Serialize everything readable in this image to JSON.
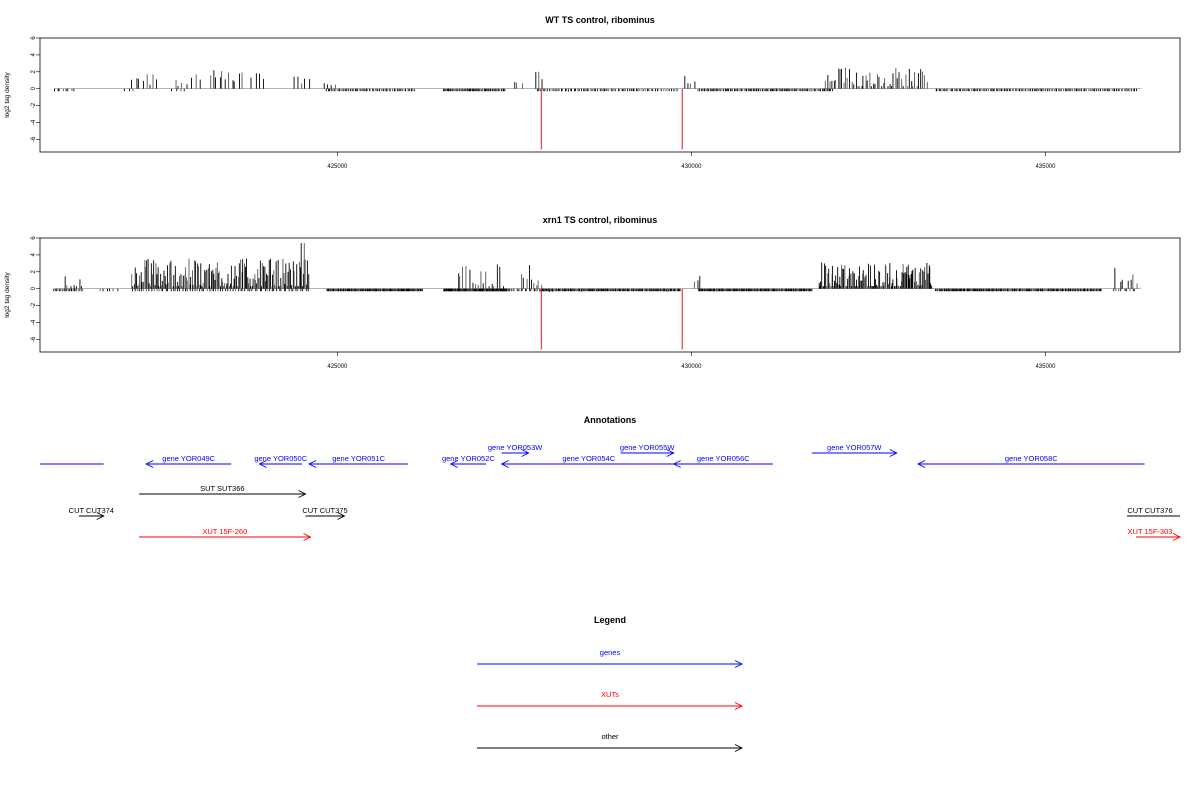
{
  "chart_data": [
    {
      "type": "bar",
      "title": "WT TS control, ribominus",
      "xlabel": "",
      "ylabel": "log2 tag density",
      "xlim": [
        420800,
        436900
      ],
      "ylim": [
        -7.5,
        6
      ],
      "yticks": [
        -6,
        -4,
        -2,
        0,
        2,
        4,
        6
      ],
      "xticks": [
        425000,
        430000,
        435000
      ],
      "grid": false,
      "highlight_color": "#e31a1c",
      "highlighted_x": [
        427880,
        429870
      ],
      "highlighted_values": [
        -7.2,
        -7.2
      ],
      "segments": [
        {
          "from": 421000,
          "to": 421300,
          "step": 40,
          "base": -1.8,
          "amp": 1.4,
          "dir": -1
        },
        {
          "from": 422000,
          "to": 422100,
          "step": 50,
          "base": -1.5,
          "amp": 0.6,
          "dir": -1
        },
        {
          "from": 422100,
          "to": 422450,
          "step": 50,
          "base": 1.3,
          "amp": 1.0,
          "dir": 1
        },
        {
          "from": 422700,
          "to": 423100,
          "step": 60,
          "base": 1.2,
          "amp": 1.2,
          "dir": 1
        },
        {
          "from": 422650,
          "to": 422850,
          "step": 60,
          "base": -1.2,
          "amp": 0.8,
          "dir": -1
        },
        {
          "from": 423200,
          "to": 423650,
          "step": 45,
          "base": 1.2,
          "amp": 1.0,
          "dir": 1
        },
        {
          "from": 423800,
          "to": 423950,
          "step": 50,
          "base": 1.6,
          "amp": 0.6,
          "dir": 1
        },
        {
          "from": 424400,
          "to": 424600,
          "step": 50,
          "base": 1.1,
          "amp": 0.9,
          "dir": 1
        },
        {
          "from": 424800,
          "to": 425000,
          "step": 60,
          "base": 0.8,
          "amp": 0.4,
          "dir": 1
        },
        {
          "from": 424850,
          "to": 426100,
          "step": 22,
          "base": -2.2,
          "amp": 2.2,
          "dir": -1
        },
        {
          "from": 426500,
          "to": 427380,
          "step": 14,
          "base": -2.4,
          "amp": 2.8,
          "dir": -1
        },
        {
          "from": 427500,
          "to": 427600,
          "step": 50,
          "base": 0.8,
          "amp": 0.3,
          "dir": 1
        },
        {
          "from": 427800,
          "to": 427900,
          "step": 40,
          "base": 1.6,
          "amp": 0.6,
          "dir": 1
        },
        {
          "from": 427820,
          "to": 429800,
          "step": 26,
          "base": -1.6,
          "amp": 2.0,
          "dir": -1
        },
        {
          "from": 429900,
          "to": 430050,
          "step": 50,
          "base": 1.2,
          "amp": 0.6,
          "dir": 1
        },
        {
          "from": 430100,
          "to": 432000,
          "step": 18,
          "base": -1.8,
          "amp": 2.0,
          "dir": -1
        },
        {
          "from": 431900,
          "to": 433350,
          "step": 28,
          "base": 1.2,
          "amp": 1.4,
          "dir": 1
        },
        {
          "from": 433450,
          "to": 436300,
          "step": 22,
          "base": -1.6,
          "amp": 1.8,
          "dir": -1
        }
      ]
    },
    {
      "type": "bar",
      "title": "xrn1 TS control, ribominus",
      "xlabel": "",
      "ylabel": "log2 tag density",
      "xlim": [
        420800,
        436900
      ],
      "ylim": [
        -7.5,
        6
      ],
      "yticks": [
        -6,
        -4,
        -2,
        0,
        2,
        4,
        6
      ],
      "xticks": [
        425000,
        430000,
        435000
      ],
      "grid": false,
      "highlight_color": "#e31a1c",
      "highlighted_x": [
        427880,
        429870
      ],
      "highlighted_values": [
        -7.2,
        -7.2
      ],
      "segments": [
        {
          "from": 421000,
          "to": 421400,
          "step": 18,
          "base": -2.0,
          "amp": 2.0,
          "dir": -1
        },
        {
          "from": 421150,
          "to": 421400,
          "step": 40,
          "base": 1.0,
          "amp": 0.8,
          "dir": 1
        },
        {
          "from": 421650,
          "to": 421900,
          "step": 50,
          "base": -1.2,
          "amp": 0.6,
          "dir": -1
        },
        {
          "from": 422100,
          "to": 424600,
          "step": 16,
          "base": 1.6,
          "amp": 2.0,
          "dir": 1
        },
        {
          "from": 422100,
          "to": 424600,
          "step": 34,
          "base": -1.2,
          "amp": 1.0,
          "dir": -1
        },
        {
          "from": 424480,
          "to": 424520,
          "step": 40,
          "base": 5.4,
          "amp": 0.0,
          "dir": 1
        },
        {
          "from": 424850,
          "to": 426200,
          "step": 10,
          "base": -2.4,
          "amp": 2.2,
          "dir": -1
        },
        {
          "from": 426500,
          "to": 427400,
          "step": 6,
          "base": -3.6,
          "amp": 3.0,
          "dir": -1
        },
        {
          "from": 426700,
          "to": 427350,
          "step": 40,
          "base": 1.4,
          "amp": 1.8,
          "dir": 1
        },
        {
          "from": 427350,
          "to": 427850,
          "step": 30,
          "base": -1.2,
          "amp": 1.0,
          "dir": -1
        },
        {
          "from": 427600,
          "to": 427900,
          "step": 35,
          "base": 1.6,
          "amp": 1.2,
          "dir": 1
        },
        {
          "from": 427850,
          "to": 429850,
          "step": 12,
          "base": -2.0,
          "amp": 2.4,
          "dir": -1
        },
        {
          "from": 430050,
          "to": 430150,
          "step": 40,
          "base": 1.4,
          "amp": 0.6,
          "dir": 1
        },
        {
          "from": 430100,
          "to": 431700,
          "step": 10,
          "base": -2.2,
          "amp": 2.2,
          "dir": -1
        },
        {
          "from": 431800,
          "to": 433400,
          "step": 14,
          "base": 1.4,
          "amp": 1.8,
          "dir": 1
        },
        {
          "from": 433450,
          "to": 435800,
          "step": 12,
          "base": -1.8,
          "amp": 2.0,
          "dir": -1
        },
        {
          "from": 435950,
          "to": 436300,
          "step": 40,
          "base": -1.2,
          "amp": 1.0,
          "dir": -1
        },
        {
          "from": 436000,
          "to": 436300,
          "step": 50,
          "base": 1.4,
          "amp": 1.2,
          "dir": 1
        }
      ]
    }
  ],
  "annotations": {
    "title": "Annotations",
    "colors": {
      "gene": "#0000ff",
      "xut": "#ff0000",
      "other": "#000000"
    },
    "features": [
      {
        "label": "",
        "start": 420800,
        "end": 421700,
        "strand": "none",
        "kind": "gene",
        "row": 3
      },
      {
        "label": "gene YOR049C",
        "start": 422300,
        "end": 423500,
        "strand": "-",
        "kind": "gene",
        "row": 3
      },
      {
        "label": "gene YOR050C",
        "start": 423900,
        "end": 424500,
        "strand": "-",
        "kind": "gene",
        "row": 3
      },
      {
        "label": "gene YOR051C",
        "start": 424600,
        "end": 426000,
        "strand": "-",
        "kind": "gene",
        "row": 3
      },
      {
        "label": "gene YOR052C",
        "start": 426600,
        "end": 427100,
        "strand": "-",
        "kind": "gene",
        "row": 3
      },
      {
        "label": "gene YOR053W",
        "start": 427320,
        "end": 427700,
        "strand": "+",
        "kind": "gene",
        "row": 2
      },
      {
        "label": "gene YOR054C",
        "start": 427320,
        "end": 429780,
        "strand": "-",
        "kind": "gene",
        "row": 3
      },
      {
        "label": "gene YOR055W",
        "start": 429000,
        "end": 429750,
        "strand": "+",
        "kind": "gene",
        "row": 2
      },
      {
        "label": "gene YOR056C",
        "start": 429750,
        "end": 431150,
        "strand": "-",
        "kind": "gene",
        "row": 3
      },
      {
        "label": "gene YOR057W",
        "start": 431700,
        "end": 432900,
        "strand": "+",
        "kind": "gene",
        "row": 2
      },
      {
        "label": "gene YOR058C",
        "start": 433200,
        "end": 436400,
        "strand": "-",
        "kind": "gene",
        "row": 3
      },
      {
        "label": "SUT SUT366",
        "start": 422200,
        "end": 424550,
        "strand": "+",
        "kind": "other",
        "row": 4
      },
      {
        "label": "CUT CUT374",
        "start": 421350,
        "end": 421700,
        "strand": "+",
        "kind": "other",
        "row": 5
      },
      {
        "label": "CUT CUT375",
        "start": 424550,
        "end": 425100,
        "strand": "+",
        "kind": "other",
        "row": 5
      },
      {
        "label": "CUT CUT376",
        "start": 436150,
        "end": 436900,
        "strand": "none",
        "kind": "other",
        "row": 5
      },
      {
        "label": "XUT 15F-260",
        "start": 422200,
        "end": 424620,
        "strand": "+",
        "kind": "xut",
        "row": 6
      },
      {
        "label": "XUT 15F-303",
        "start": 436280,
        "end": 436900,
        "strand": "+",
        "kind": "xut",
        "row": 6
      }
    ]
  },
  "legend": {
    "title": "Legend",
    "items": [
      {
        "label": "genes",
        "kind": "gene"
      },
      {
        "label": "XUTs",
        "kind": "xut"
      },
      {
        "label": "other",
        "kind": "other"
      }
    ]
  }
}
